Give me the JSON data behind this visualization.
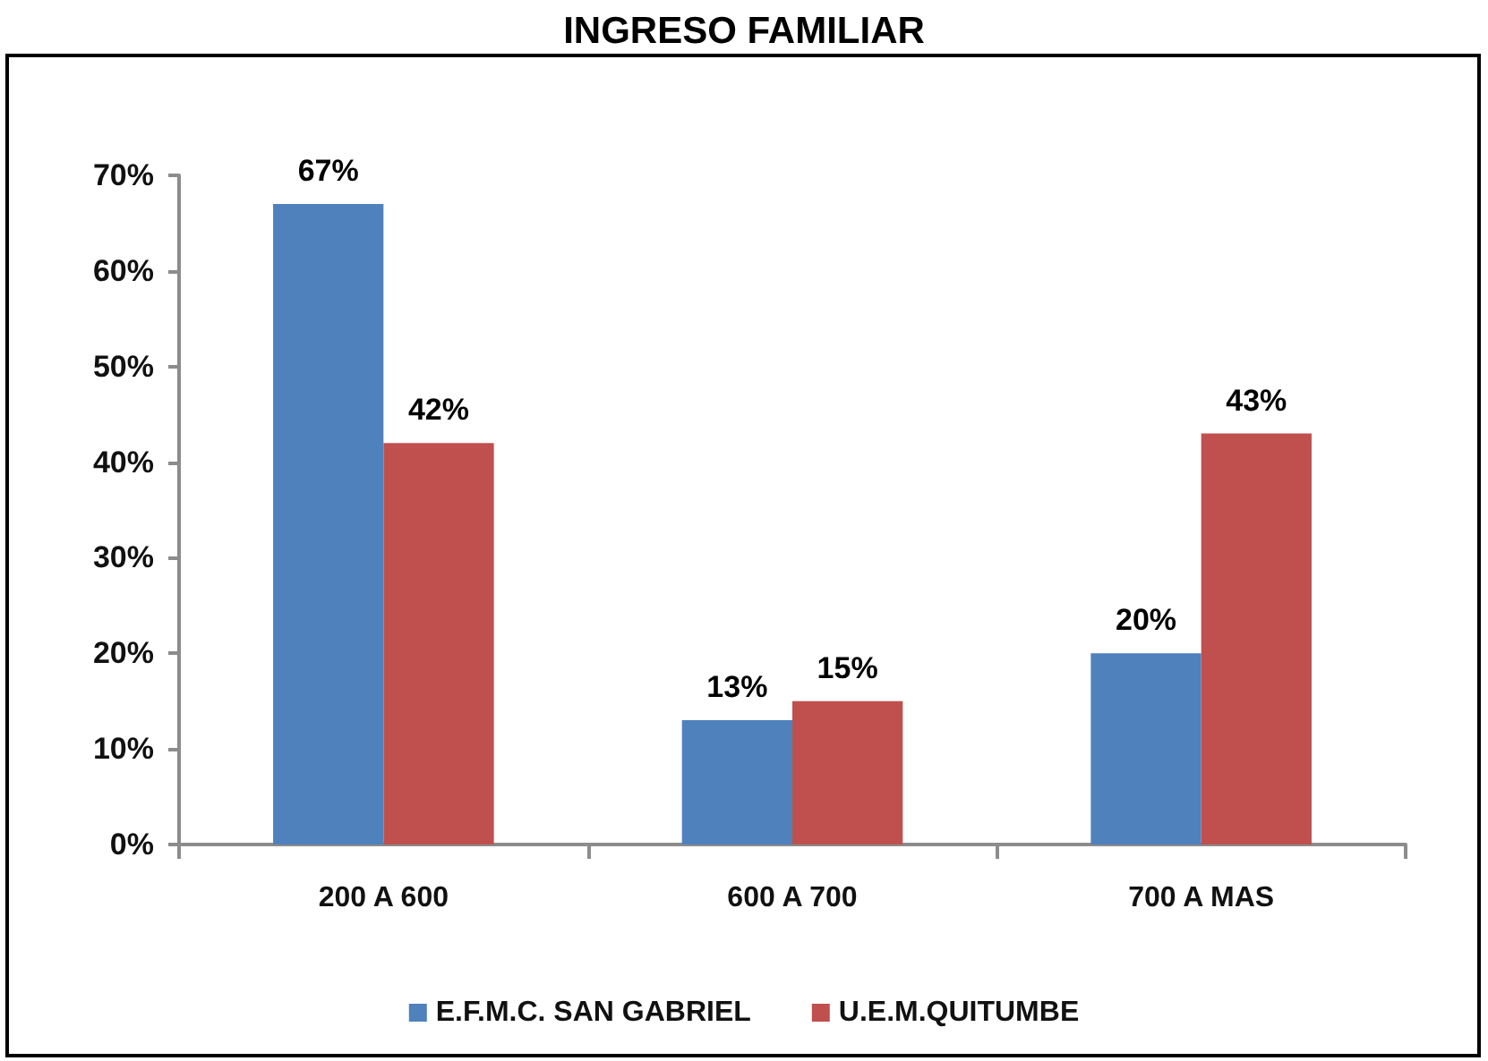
{
  "chart_data": {
    "type": "bar",
    "title": "INGRESO FAMILIAR",
    "categories": [
      "200 A 600",
      "600 A 700",
      "700 A MAS"
    ],
    "series": [
      {
        "name": "E.F.M.C. SAN GABRIEL",
        "color": "#4f81bd",
        "values": [
          67,
          13,
          20
        ],
        "value_labels": [
          "67%",
          "13%",
          "20%"
        ]
      },
      {
        "name": "U.E.M.QUITUMBE",
        "color": "#c0504d",
        "values": [
          42,
          15,
          43
        ],
        "value_labels": [
          "42%",
          "15%",
          "43%"
        ]
      }
    ],
    "ylim": [
      0,
      70
    ],
    "yticks": [
      {
        "value": 0,
        "label": "0%"
      },
      {
        "value": 10,
        "label": "10%"
      },
      {
        "value": 20,
        "label": "20%"
      },
      {
        "value": 30,
        "label": "30%"
      },
      {
        "value": 40,
        "label": "40%"
      },
      {
        "value": 50,
        "label": "50%"
      },
      {
        "value": 60,
        "label": "60%"
      },
      {
        "value": 70,
        "label": "70%"
      }
    ],
    "grid": false,
    "legend": "bottom"
  }
}
